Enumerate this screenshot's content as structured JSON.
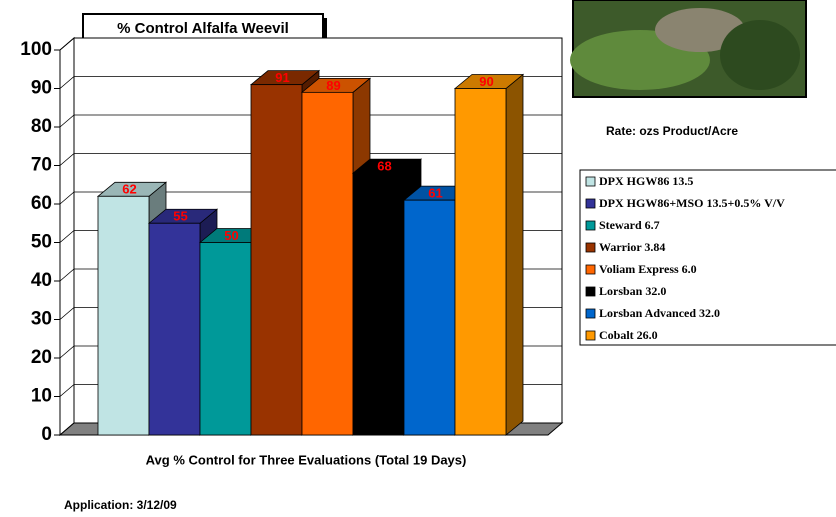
{
  "chart_data": {
    "type": "bar",
    "title": "% Control Alfalfa Weevil",
    "x_label": "Avg % Control for Three Evaluations (Total 19 Days)",
    "legend_title": "Rate: ozs Product/Acre",
    "note": "Application: 3/12/09",
    "ylim": [
      0,
      100
    ],
    "yticks": [
      0,
      10,
      20,
      30,
      40,
      50,
      60,
      70,
      80,
      90,
      100
    ],
    "grid": true,
    "legend": "right",
    "series": [
      {
        "name": "DPX HGW86 13.5",
        "color": "#c0e4e4",
        "values": [
          62
        ]
      },
      {
        "name": "DPX HGW86+MSO 13.5+0.5% V/V",
        "color": "#333399",
        "values": [
          55
        ]
      },
      {
        "name": "Steward 6.7",
        "color": "#009999",
        "values": [
          50
        ]
      },
      {
        "name": "Warrior 3.84",
        "color": "#993300",
        "values": [
          91
        ]
      },
      {
        "name": "Voliam Express 6.0",
        "color": "#ff6600",
        "values": [
          89
        ]
      },
      {
        "name": "Lorsban 32.0",
        "color": "#000000",
        "values": [
          68
        ]
      },
      {
        "name": "Lorsban Advanced 32.0",
        "color": "#0066cc",
        "values": [
          61
        ]
      },
      {
        "name": "Cobalt 26.0",
        "color": "#ff9900",
        "values": [
          90
        ]
      }
    ]
  }
}
